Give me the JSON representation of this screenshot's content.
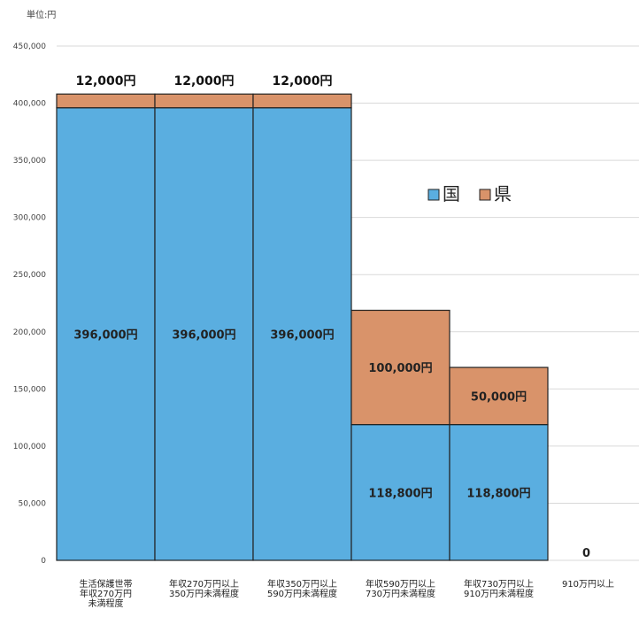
{
  "chart_data": {
    "type": "bar",
    "stacked": true,
    "unit_label": "単位:円",
    "ylim": [
      0,
      450000
    ],
    "yticks": [
      "450,000",
      "400,000",
      "350,000",
      "300,000",
      "250,000",
      "200,000",
      "150,000",
      "100,000",
      "50,000",
      "0"
    ],
    "ytick_values": [
      450000,
      400000,
      350000,
      300000,
      250000,
      200000,
      150000,
      100000,
      50000,
      0
    ],
    "grid": true,
    "legend_position": "center-right",
    "categories": [
      [
        "生活保護世帯",
        "年収270万円",
        "未満程度"
      ],
      [
        "年収270万円以上",
        "350万円未満程度"
      ],
      [
        "年収350万円以上",
        "590万円未満程度"
      ],
      [
        "年収590万円以上",
        "730万円未満程度"
      ],
      [
        "年収730万円以上",
        "910万円未満程度"
      ],
      [
        "910万円以上"
      ]
    ],
    "series": [
      {
        "name": "国",
        "color": "#5aaee0",
        "values": [
          396000,
          396000,
          396000,
          118800,
          118800,
          0
        ],
        "labels": [
          "396,000円",
          "396,000円",
          "396,000円",
          "118,800円",
          "118,800円",
          ""
        ]
      },
      {
        "name": "県",
        "color": "#d9936a",
        "values": [
          12000,
          12000,
          12000,
          100000,
          50000,
          0
        ],
        "labels": [
          "12,000円",
          "12,000円",
          "12,000円",
          "100,000円",
          "50,000円",
          ""
        ]
      }
    ],
    "zero_label": "0"
  }
}
